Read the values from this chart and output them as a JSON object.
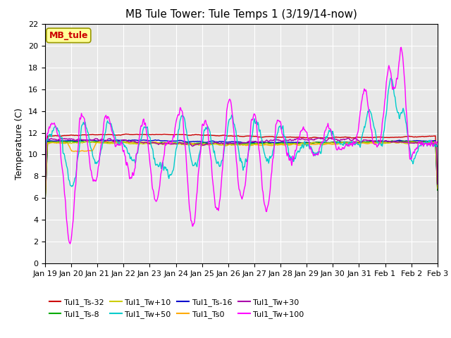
{
  "title": "MB Tule Tower: Tule Temps 1 (3/19/14-now)",
  "ylabel": "Temperature (C)",
  "ylim": [
    0,
    22
  ],
  "yticks": [
    0,
    2,
    4,
    6,
    8,
    10,
    12,
    14,
    16,
    18,
    20,
    22
  ],
  "xtick_labels": [
    "Jan 19",
    "Jan 20",
    "Jan 21",
    "Jan 22",
    "Jan 23",
    "Jan 24",
    "Jan 25",
    "Jan 26",
    "Jan 27",
    "Jan 28",
    "Jan 29",
    "Jan 30",
    "Jan 31",
    "Feb 1",
    "Feb 2",
    "Feb 3"
  ],
  "series": [
    {
      "label": "Tul1_Ts-32",
      "color": "#cc0000",
      "lw": 1.0
    },
    {
      "label": "Tul1_Ts-16",
      "color": "#0000cc",
      "lw": 1.0
    },
    {
      "label": "Tul1_Ts-8",
      "color": "#00aa00",
      "lw": 1.0
    },
    {
      "label": "Tul1_Ts0",
      "color": "#ffaa00",
      "lw": 1.0
    },
    {
      "label": "Tul1_Tw+10",
      "color": "#cccc00",
      "lw": 1.0
    },
    {
      "label": "Tul1_Tw+30",
      "color": "#aa00aa",
      "lw": 1.0
    },
    {
      "label": "Tul1_Tw+50",
      "color": "#00cccc",
      "lw": 1.0
    },
    {
      "label": "Tul1_Tw+100",
      "color": "#ff00ff",
      "lw": 1.0
    }
  ],
  "legend_box_label": "MB_tule",
  "legend_box_facecolor": "#ffff99",
  "legend_box_edgecolor": "#999900",
  "legend_text_color": "#cc0000",
  "background_color": "#e8e8e8",
  "title_fontsize": 11,
  "ylabel_fontsize": 9,
  "tick_fontsize": 8,
  "legend_fontsize": 8
}
